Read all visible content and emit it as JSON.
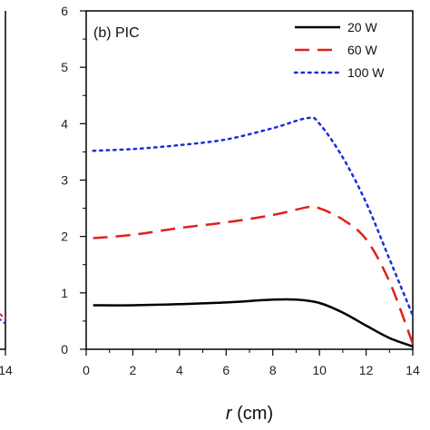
{
  "chart_data": {
    "type": "line",
    "panel_label": "(b) PIC",
    "xlabel_symbol": "r",
    "xlabel_unit": " (cm)",
    "xlim": [
      0,
      14
    ],
    "ylim": [
      0,
      6
    ],
    "x_ticks": [
      0,
      2,
      4,
      6,
      8,
      10,
      12,
      14
    ],
    "y_ticks": [
      0,
      1,
      2,
      3,
      4,
      5,
      6
    ],
    "legend_position": "top-right",
    "series": [
      {
        "name": "20 W",
        "color": "#000000",
        "dash": "solid",
        "x": [
          0.3,
          2,
          4,
          6,
          8,
          9,
          10,
          11,
          12,
          13,
          14
        ],
        "y": [
          0.78,
          0.78,
          0.8,
          0.83,
          0.88,
          0.88,
          0.82,
          0.65,
          0.42,
          0.2,
          0.05
        ]
      },
      {
        "name": "60 W",
        "color": "#e02020",
        "dash": "long",
        "x": [
          0.3,
          2,
          4,
          6,
          8,
          9.5,
          10,
          11,
          12,
          13,
          14
        ],
        "y": [
          1.97,
          2.03,
          2.15,
          2.25,
          2.38,
          2.52,
          2.5,
          2.3,
          1.95,
          1.2,
          0.1
        ]
      },
      {
        "name": "100 W",
        "color": "#1a2fd6",
        "dash": "dot",
        "x": [
          0.3,
          2,
          4,
          6,
          8,
          9.5,
          10,
          11,
          12,
          13,
          14
        ],
        "y": [
          3.52,
          3.55,
          3.62,
          3.72,
          3.92,
          4.1,
          4.0,
          3.4,
          2.6,
          1.6,
          0.6
        ]
      }
    ],
    "left_panel_partial": {
      "x_tick": "14"
    }
  }
}
